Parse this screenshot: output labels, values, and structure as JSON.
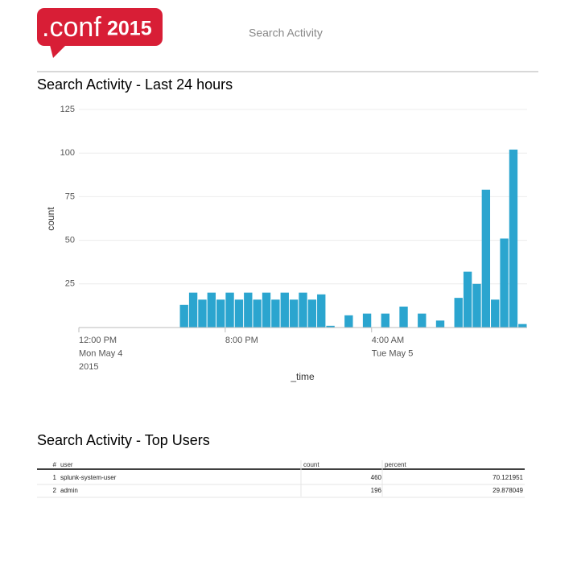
{
  "header": {
    "logo_text": ".conf",
    "logo_year": "2015",
    "title": "Search Activity"
  },
  "chart_data": {
    "type": "bar",
    "title": "Search Activity - Last 24 hours",
    "x_label": "_time",
    "y_label": "count",
    "categories": [
      [
        "12:00 PM",
        "Mon May 4",
        "2015"
      ],
      null,
      null,
      null,
      null,
      null,
      null,
      null,
      null,
      null,
      null,
      null,
      null,
      null,
      null,
      null,
      [
        "8:00 PM"
      ],
      null,
      null,
      null,
      null,
      null,
      null,
      null,
      null,
      null,
      null,
      null,
      null,
      null,
      null,
      null,
      [
        "4:00 AM",
        "Tue May 5"
      ],
      null,
      null,
      null,
      null,
      null,
      null,
      null,
      null,
      null,
      null,
      null,
      null,
      null,
      null,
      null,
      null
    ],
    "values": [
      0,
      0,
      0,
      0,
      0,
      0,
      0,
      0,
      0,
      0,
      0,
      13,
      20,
      16,
      20,
      16,
      20,
      16,
      20,
      16,
      20,
      16,
      20,
      16,
      20,
      16,
      19,
      1,
      0,
      7,
      0,
      8,
      0,
      8,
      0,
      12,
      0,
      8,
      0,
      4,
      0,
      17,
      32,
      25,
      79,
      16,
      51,
      102,
      2
    ],
    "color": "#2ba5cf",
    "ylim": [
      0,
      125
    ],
    "yticks": [
      25,
      50,
      75,
      100,
      125
    ],
    "grid": true
  },
  "table": {
    "title": "Search Activity - Top Users",
    "columns": [
      "#",
      "user",
      "count",
      "percent"
    ],
    "rows": [
      [
        1,
        "splunk-system-user",
        460,
        70.121951
      ],
      [
        2,
        "admin",
        196,
        29.878049
      ]
    ]
  }
}
